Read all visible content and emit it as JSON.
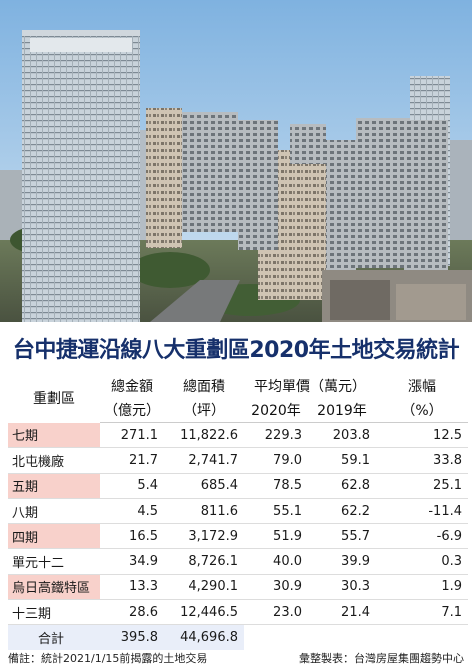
{
  "title": "台中捷運沿線八大重劃區2020年土地交易統計",
  "table": {
    "headers": {
      "district": "重劃區",
      "amount_line1": "總金額",
      "amount_line2": "（億元）",
      "area_line1": "總面積",
      "area_line2": "（坪）",
      "avg_price": "平均單價（萬元）",
      "year_2020": "2020年",
      "year_2019": "2019年",
      "change_line1": "漲幅",
      "change_line2": "（%）"
    },
    "rows": [
      {
        "district": "七期",
        "amount": "271.1",
        "area": "11,822.6",
        "price_2020": "229.3",
        "price_2019": "203.8",
        "change": "12.5"
      },
      {
        "district": "北屯機廠",
        "amount": "21.7",
        "area": "2,741.7",
        "price_2020": "79.0",
        "price_2019": "59.1",
        "change": "33.8"
      },
      {
        "district": "五期",
        "amount": "5.4",
        "area": "685.4",
        "price_2020": "78.5",
        "price_2019": "62.8",
        "change": "25.1"
      },
      {
        "district": "八期",
        "amount": "4.5",
        "area": "811.6",
        "price_2020": "55.1",
        "price_2019": "62.2",
        "change": "-11.4"
      },
      {
        "district": "四期",
        "amount": "16.5",
        "area": "3,172.9",
        "price_2020": "51.9",
        "price_2019": "55.7",
        "change": "-6.9"
      },
      {
        "district": "單元十二",
        "amount": "34.9",
        "area": "8,726.1",
        "price_2020": "40.0",
        "price_2019": "39.9",
        "change": "0.3"
      },
      {
        "district": "烏日高鐵特區",
        "amount": "13.3",
        "area": "4,290.1",
        "price_2020": "30.9",
        "price_2019": "30.3",
        "change": "1.9"
      },
      {
        "district": "十三期",
        "amount": "28.6",
        "area": "12,446.5",
        "price_2020": "23.0",
        "price_2019": "21.4",
        "change": "7.1"
      }
    ],
    "total": {
      "label": "合計",
      "amount": "395.8",
      "area": "44,696.8"
    }
  },
  "footer": {
    "note": "備註：統計2021/1/15前揭露的土地交易",
    "source": "彙整製表：台灣房屋集團趨勢中心"
  },
  "colors": {
    "title": "#16306b",
    "name_highlight": "#f8d1cb",
    "total_row": "#e9eef9",
    "sky": "#9ec3e6"
  }
}
